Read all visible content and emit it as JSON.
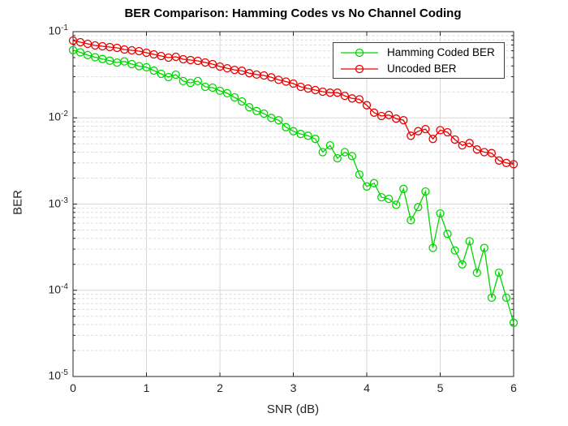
{
  "chart_data": {
    "type": "line",
    "title": "BER Comparison: Hamming Codes vs No Channel Coding",
    "xlabel": "SNR (dB)",
    "ylabel": "BER",
    "xlim": [
      0,
      6
    ],
    "ylim_exp": [
      -5,
      -1
    ],
    "x_ticks": [
      0,
      1,
      2,
      3,
      4,
      5,
      6
    ],
    "y_tick_exponents": [
      -1,
      -2,
      -3,
      -4,
      -5
    ],
    "y_scale": "log",
    "grid": true,
    "minor_grid": true,
    "legend_position": "northeast",
    "x": [
      0,
      0.1,
      0.2,
      0.3,
      0.4,
      0.5,
      0.6,
      0.7,
      0.8,
      0.9,
      1,
      1.1,
      1.2,
      1.3,
      1.4,
      1.5,
      1.6,
      1.7,
      1.8,
      1.9,
      2,
      2.1,
      2.2,
      2.3,
      2.4,
      2.5,
      2.6,
      2.7,
      2.8,
      2.9,
      3,
      3.1,
      3.2,
      3.3,
      3.4,
      3.5,
      3.6,
      3.7,
      3.8,
      3.9,
      4,
      4.1,
      4.2,
      4.3,
      4.4,
      4.5,
      4.6,
      4.7,
      4.8,
      4.9,
      5,
      5.1,
      5.2,
      5.3,
      5.4,
      5.5,
      5.6,
      5.7,
      5.8,
      5.9,
      6
    ],
    "series": [
      {
        "name": "Hamming Coded BER",
        "color": "#00d600",
        "marker": "circle",
        "values": [
          0.061,
          0.0575,
          0.0535,
          0.0505,
          0.0482,
          0.046,
          0.0438,
          0.0452,
          0.042,
          0.0398,
          0.0386,
          0.0353,
          0.0324,
          0.0297,
          0.0317,
          0.0267,
          0.0255,
          0.0267,
          0.0229,
          0.0224,
          0.0206,
          0.0193,
          0.0173,
          0.0155,
          0.0133,
          0.012,
          0.0112,
          0.01,
          0.0094,
          0.0078,
          0.007,
          0.0065,
          0.0062,
          0.0057,
          0.004,
          0.0048,
          0.0034,
          0.004,
          0.0036,
          0.0022,
          0.0016,
          0.00175,
          0.0012,
          0.00115,
          0.00098,
          0.0015,
          0.00065,
          0.00092,
          0.0014,
          0.00031,
          0.00078,
          0.00045,
          0.00029,
          0.0002,
          0.00037,
          0.00016,
          0.00031,
          8.2e-05,
          0.00016,
          8.2e-05,
          4.2e-05
        ]
      },
      {
        "name": "Uncoded BER",
        "color": "#e80000",
        "marker": "circle",
        "values": [
          0.0788,
          0.0754,
          0.0722,
          0.0692,
          0.0677,
          0.0663,
          0.0648,
          0.0621,
          0.0607,
          0.0594,
          0.0569,
          0.0545,
          0.0522,
          0.05,
          0.0511,
          0.0479,
          0.0468,
          0.0458,
          0.0439,
          0.042,
          0.0394,
          0.0376,
          0.036,
          0.0352,
          0.033,
          0.0318,
          0.031,
          0.0295,
          0.0276,
          0.0264,
          0.025,
          0.0229,
          0.0219,
          0.021,
          0.0201,
          0.0196,
          0.0196,
          0.018,
          0.0168,
          0.0164,
          0.014,
          0.0115,
          0.0105,
          0.0108,
          0.0098,
          0.0094,
          0.0062,
          0.007,
          0.0074,
          0.0057,
          0.0072,
          0.0068,
          0.0056,
          0.0048,
          0.0051,
          0.0043,
          0.004,
          0.0039,
          0.0032,
          0.003,
          0.0029
        ]
      }
    ],
    "colors": {
      "axis": "#262626",
      "grid_major": "#d7d7d7",
      "grid_minor": "#dcdcdc",
      "background": "#ffffff"
    }
  }
}
